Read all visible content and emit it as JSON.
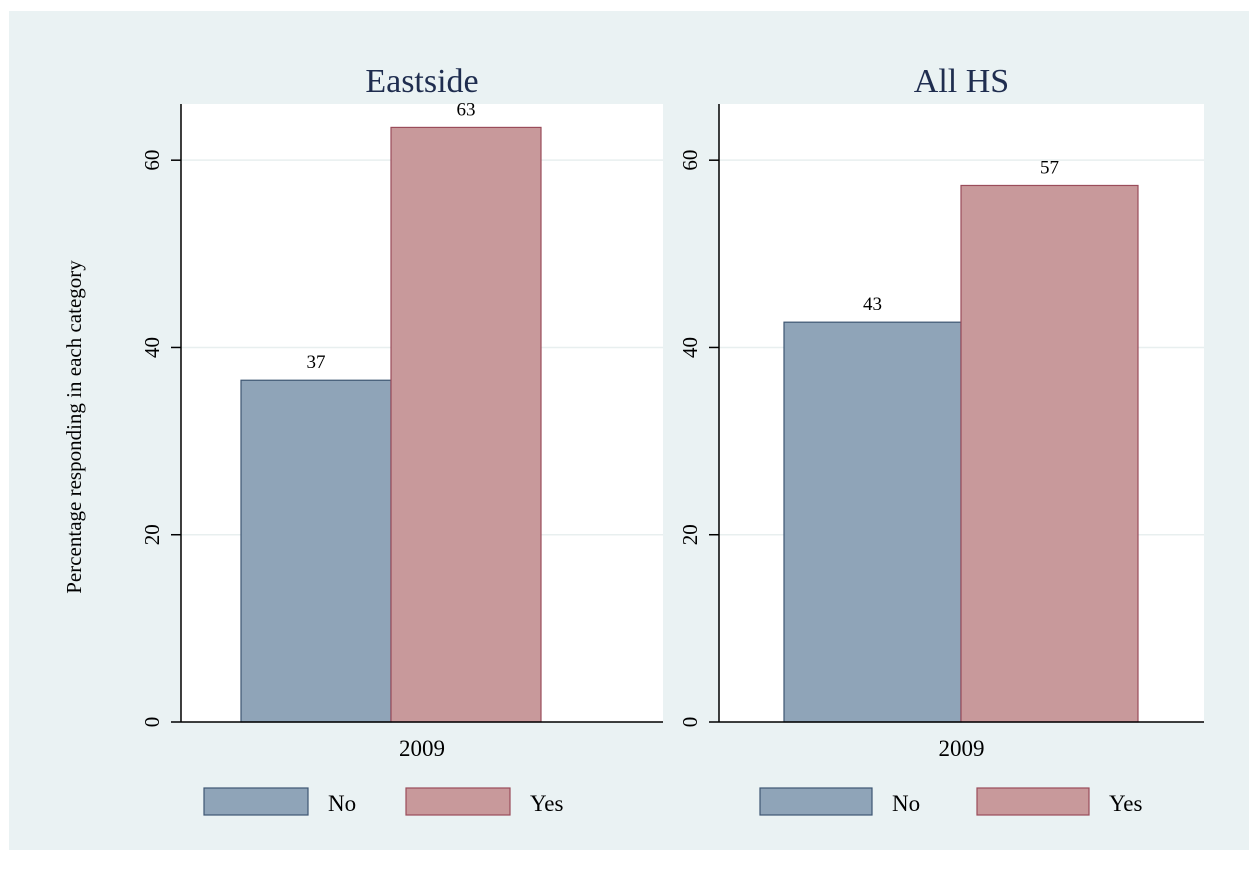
{
  "colors": {
    "background": "#eaf2f3",
    "plot_background": "#ffffff",
    "no_fill": "#8fa4b8",
    "no_stroke": "#3e5673",
    "yes_fill": "#c8999b",
    "yes_stroke": "#9a4c5a",
    "title": "#1f2d4f",
    "gridline": "#e8efef",
    "text": "#000000"
  },
  "y_axis_label": "Percentage responding in each category",
  "chart_data": [
    {
      "type": "bar",
      "title": "Eastside",
      "categories": [
        "2009"
      ],
      "series": [
        {
          "name": "No",
          "values": [
            36.5
          ],
          "data_labels": [
            "37"
          ]
        },
        {
          "name": "Yes",
          "values": [
            63.5
          ],
          "data_labels": [
            "63"
          ]
        }
      ],
      "ylabel": "Percentage responding in each category",
      "xlabel": "",
      "ylim": [
        0,
        66
      ],
      "yticks": [
        0,
        20,
        40,
        60
      ],
      "ytick_labels": [
        "0",
        "20",
        "40",
        "60"
      ],
      "grid": true,
      "legend": {
        "position": "bottom",
        "entries": [
          "No",
          "Yes"
        ]
      }
    },
    {
      "type": "bar",
      "title": "All HS",
      "categories": [
        "2009"
      ],
      "series": [
        {
          "name": "No",
          "values": [
            42.7
          ],
          "data_labels": [
            "43"
          ]
        },
        {
          "name": "Yes",
          "values": [
            57.3
          ],
          "data_labels": [
            "57"
          ]
        }
      ],
      "xlabel": "",
      "ylim": [
        0,
        66
      ],
      "yticks": [
        0,
        20,
        40,
        60
      ],
      "ytick_labels": [
        "0",
        "20",
        "40",
        "60"
      ],
      "grid": true,
      "legend": {
        "position": "bottom",
        "entries": [
          "No",
          "Yes"
        ]
      }
    }
  ]
}
